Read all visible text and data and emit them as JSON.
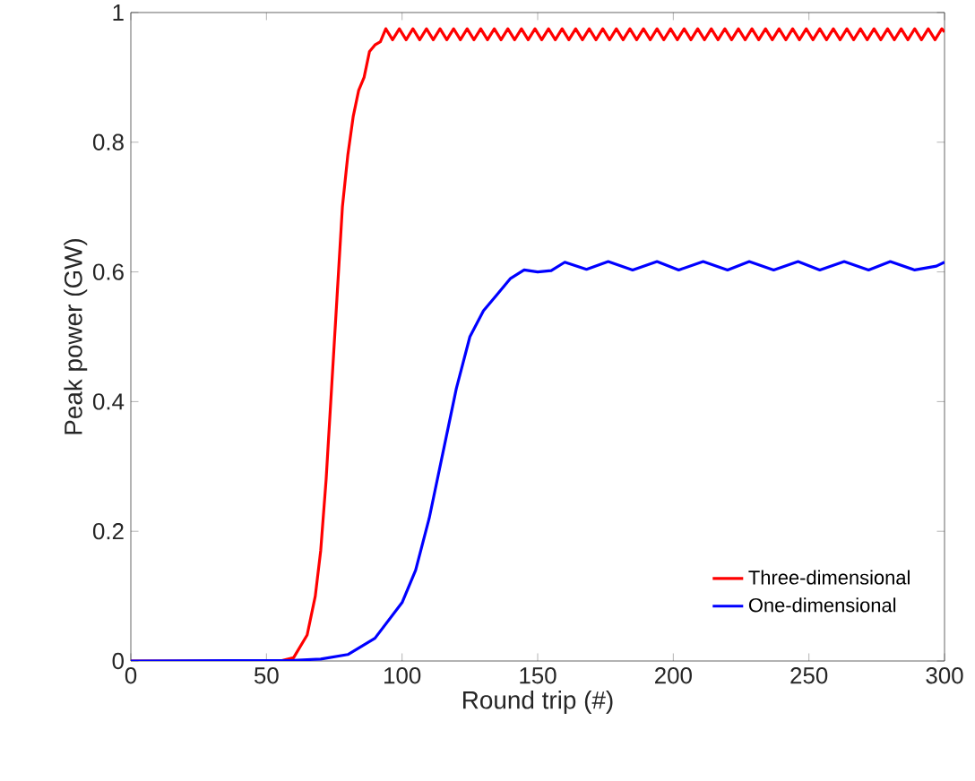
{
  "chart_data": {
    "type": "line",
    "xlabel": "Round trip (#)",
    "ylabel": "Peak power (GW)",
    "xlim": [
      0,
      300
    ],
    "ylim": [
      0,
      1
    ],
    "xticks": [
      0,
      50,
      100,
      150,
      200,
      250,
      300
    ],
    "yticks": [
      0,
      0.2,
      0.4,
      0.6,
      0.8,
      1
    ],
    "legend": "bottom right",
    "grid": false,
    "marker": "none",
    "line_style": "solid",
    "series": [
      {
        "name": "Three-dimensional",
        "color": "#ff0000",
        "x": [
          0,
          55,
          60,
          65,
          68,
          70,
          72,
          74,
          76,
          78,
          80,
          82,
          84,
          86,
          88,
          90,
          92,
          94,
          96.5,
          99,
          101.5,
          104,
          106.5,
          109,
          111.5,
          114,
          116.5,
          119,
          121.5,
          124,
          126.5,
          129,
          131.5,
          134,
          136.5,
          139,
          141.5,
          144,
          146.5,
          149,
          151.5,
          154,
          156.5,
          159,
          161.5,
          164,
          166.5,
          169,
          171.5,
          174,
          176.5,
          179,
          181.5,
          184,
          186.5,
          189,
          191.5,
          194,
          196.5,
          199,
          201.5,
          204,
          206.5,
          209,
          211.5,
          214,
          216.5,
          219,
          221.5,
          224,
          226.5,
          229,
          231.5,
          234,
          236.5,
          239,
          241.5,
          244,
          246.5,
          249,
          251.5,
          254,
          256.5,
          259,
          261.5,
          264,
          266.5,
          269,
          271.5,
          274,
          276.5,
          279,
          281.5,
          284,
          286.5,
          289,
          291.5,
          294,
          296.5,
          299,
          300
        ],
        "values": [
          0,
          0,
          0.005,
          0.04,
          0.1,
          0.17,
          0.28,
          0.42,
          0.56,
          0.7,
          0.78,
          0.84,
          0.88,
          0.9,
          0.94,
          0.95,
          0.955,
          0.975,
          0.958,
          0.975,
          0.958,
          0.975,
          0.958,
          0.975,
          0.958,
          0.975,
          0.958,
          0.975,
          0.958,
          0.975,
          0.958,
          0.975,
          0.958,
          0.975,
          0.958,
          0.975,
          0.958,
          0.975,
          0.958,
          0.975,
          0.958,
          0.975,
          0.958,
          0.975,
          0.958,
          0.975,
          0.958,
          0.975,
          0.958,
          0.975,
          0.958,
          0.975,
          0.958,
          0.975,
          0.958,
          0.975,
          0.958,
          0.975,
          0.958,
          0.975,
          0.958,
          0.975,
          0.958,
          0.975,
          0.958,
          0.975,
          0.958,
          0.975,
          0.958,
          0.975,
          0.958,
          0.975,
          0.958,
          0.975,
          0.958,
          0.975,
          0.958,
          0.975,
          0.958,
          0.975,
          0.958,
          0.975,
          0.958,
          0.975,
          0.958,
          0.975,
          0.958,
          0.975,
          0.958,
          0.975,
          0.958,
          0.975,
          0.958,
          0.975,
          0.958,
          0.975,
          0.958,
          0.975,
          0.958,
          0.975,
          0.97
        ]
      },
      {
        "name": "One-dimensional",
        "color": "#0000ff",
        "x": [
          0,
          60,
          70,
          80,
          90,
          100,
          105,
          110,
          115,
          120,
          125,
          130,
          135,
          140,
          145,
          150,
          155,
          160,
          168,
          176,
          185,
          194,
          202,
          211,
          220,
          228,
          237,
          246,
          254,
          263,
          272,
          280,
          289,
          297,
          300
        ],
        "values": [
          0,
          0.001,
          0.003,
          0.01,
          0.035,
          0.09,
          0.14,
          0.22,
          0.32,
          0.42,
          0.5,
          0.54,
          0.565,
          0.59,
          0.603,
          0.6,
          0.602,
          0.615,
          0.604,
          0.616,
          0.603,
          0.616,
          0.603,
          0.616,
          0.603,
          0.616,
          0.603,
          0.616,
          0.603,
          0.616,
          0.603,
          0.616,
          0.603,
          0.609,
          0.615
        ]
      }
    ]
  }
}
